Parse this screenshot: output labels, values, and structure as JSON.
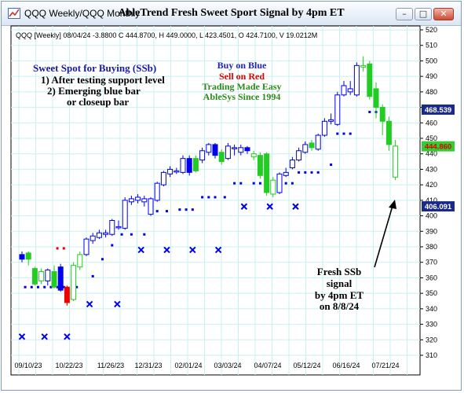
{
  "window": {
    "title": "QQQ Weekly/QQQ Monthly",
    "chart_title": "AbleTrend Fresh Sweet Sport Signal by 4pm ET",
    "controls": {
      "minimize": "–",
      "maximize": "□",
      "close": "✕"
    }
  },
  "header_info": "QQQ [Weekly] 08/04/24 -3.8800 C 444.8700, H 449.0000, L 423.4501, O 424.7100, V 19.0212M",
  "annotations": {
    "sweet_spot": [
      "Sweet Spot for Buying (SSb)",
      "1) After testing support level",
      "2) Emerging blue bar",
      "or closeup bar"
    ],
    "legend": [
      "Buy on Blue",
      "Sell on Red",
      "Trading Made Easy",
      "AbleSys Since 1994"
    ],
    "signal": [
      "Fresh SSb",
      "signal",
      "by 4pm ET",
      "on 8/8/24"
    ]
  },
  "colors": {
    "blue": "#0000ee",
    "green": "#22cc22",
    "red": "#ee0000",
    "grid": "#c8f0f0",
    "text_blue": "#1a1aa8",
    "text_red": "#e00000",
    "text_green": "#2c8a1a",
    "axis_blue_box": "#1a2a8a",
    "axis_green_box": "#33cc33"
  },
  "chart_data": {
    "type": "candlestick",
    "y_axis": {
      "min": 310,
      "max": 520,
      "ticks": [
        310,
        320,
        330,
        340,
        350,
        360,
        370,
        380,
        390,
        400,
        410,
        420,
        430,
        440,
        450,
        460,
        470,
        480,
        490,
        500,
        510,
        520
      ]
    },
    "x_labels": [
      "09/10/23",
      "10/22/23",
      "11/26/23",
      "12/31/23",
      "02/01/24",
      "03/03/24",
      "04/07/24",
      "05/12/24",
      "06/16/24",
      "07/21/24"
    ],
    "price_markers": [
      "468.539",
      "444.860",
      "406.091"
    ],
    "bars": [
      {
        "o": 375,
        "c": 372,
        "h": 377,
        "l": 370,
        "col": "blue",
        "f": true
      },
      {
        "o": 372,
        "c": 376,
        "h": 377,
        "l": 368,
        "col": "green",
        "f": true
      },
      {
        "o": 366,
        "c": 356,
        "h": 367,
        "l": 355,
        "col": "green",
        "f": true
      },
      {
        "o": 358,
        "c": 364,
        "h": 366,
        "l": 356,
        "col": "green",
        "f": false
      },
      {
        "o": 358,
        "c": 365,
        "h": 366,
        "l": 355,
        "col": "blue",
        "f": false
      },
      {
        "o": 364,
        "c": 354,
        "h": 368,
        "l": 353,
        "col": "green",
        "f": true
      },
      {
        "o": 367,
        "c": 352,
        "h": 369,
        "l": 351,
        "col": "blue",
        "f": true
      },
      {
        "o": 354,
        "c": 344,
        "h": 355,
        "l": 342,
        "col": "red",
        "f": true
      },
      {
        "o": 346,
        "c": 368,
        "h": 370,
        "l": 345,
        "col": "green",
        "f": false
      },
      {
        "o": 367,
        "c": 375,
        "h": 377,
        "l": 365,
        "col": "green",
        "f": false
      },
      {
        "o": 375,
        "c": 385,
        "h": 386,
        "l": 374,
        "col": "blue",
        "f": false
      },
      {
        "o": 384,
        "c": 387,
        "h": 389,
        "l": 382,
        "col": "blue",
        "f": false
      },
      {
        "o": 386,
        "c": 389,
        "h": 391,
        "l": 385,
        "col": "blue",
        "f": false
      },
      {
        "o": 389,
        "c": 388,
        "h": 391,
        "l": 386,
        "col": "blue",
        "f": false
      },
      {
        "o": 388,
        "c": 397,
        "h": 398,
        "l": 387,
        "col": "blue",
        "f": false
      },
      {
        "o": 393,
        "c": 393,
        "h": 397,
        "l": 391,
        "col": "blue",
        "f": false
      },
      {
        "o": 392,
        "c": 410,
        "h": 412,
        "l": 391,
        "col": "blue",
        "f": false
      },
      {
        "o": 409,
        "c": 411,
        "h": 413,
        "l": 407,
        "col": "blue",
        "f": false
      },
      {
        "o": 410,
        "c": 412,
        "h": 414,
        "l": 408,
        "col": "blue",
        "f": false
      },
      {
        "o": 411,
        "c": 409,
        "h": 413,
        "l": 406,
        "col": "blue",
        "f": false
      },
      {
        "o": 401,
        "c": 411,
        "h": 412,
        "l": 400,
        "col": "blue",
        "f": false
      },
      {
        "o": 410,
        "c": 421,
        "h": 422,
        "l": 409,
        "col": "blue",
        "f": false
      },
      {
        "o": 420,
        "c": 428,
        "h": 429,
        "l": 419,
        "col": "blue",
        "f": false
      },
      {
        "o": 427,
        "c": 430,
        "h": 432,
        "l": 425,
        "col": "blue",
        "f": false
      },
      {
        "o": 429,
        "c": 429,
        "h": 431,
        "l": 427,
        "col": "blue",
        "f": false
      },
      {
        "o": 428,
        "c": 437,
        "h": 439,
        "l": 427,
        "col": "blue",
        "f": false
      },
      {
        "o": 437,
        "c": 428,
        "h": 439,
        "l": 426,
        "col": "blue",
        "f": true
      },
      {
        "o": 429,
        "c": 437,
        "h": 439,
        "l": 428,
        "col": "green",
        "f": true
      },
      {
        "o": 436,
        "c": 442,
        "h": 444,
        "l": 434,
        "col": "blue",
        "f": false
      },
      {
        "o": 441,
        "c": 446,
        "h": 447,
        "l": 439,
        "col": "blue",
        "f": false
      },
      {
        "o": 446,
        "c": 439,
        "h": 447,
        "l": 437,
        "col": "blue",
        "f": true
      },
      {
        "o": 441,
        "c": 435,
        "h": 443,
        "l": 433,
        "col": "green",
        "f": true
      },
      {
        "o": 437,
        "c": 445,
        "h": 447,
        "l": 436,
        "col": "blue",
        "f": false
      },
      {
        "o": 444,
        "c": 444,
        "h": 446,
        "l": 439,
        "col": "blue",
        "f": false
      },
      {
        "o": 444,
        "c": 441,
        "h": 446,
        "l": 439,
        "col": "blue",
        "f": false
      },
      {
        "o": 444,
        "c": 442,
        "h": 445,
        "l": 440,
        "col": "blue",
        "f": true
      },
      {
        "o": 440,
        "c": 438,
        "h": 442,
        "l": 436,
        "col": "green",
        "f": false
      },
      {
        "o": 439,
        "c": 426,
        "h": 441,
        "l": 424,
        "col": "green",
        "f": true
      },
      {
        "o": 440,
        "c": 415,
        "h": 441,
        "l": 413,
        "col": "green",
        "f": true
      },
      {
        "o": 423,
        "c": 414,
        "h": 425,
        "l": 412,
        "col": "green",
        "f": false
      },
      {
        "o": 415,
        "c": 427,
        "h": 428,
        "l": 414,
        "col": "blue",
        "f": false
      },
      {
        "o": 426,
        "c": 428,
        "h": 431,
        "l": 425,
        "col": "blue",
        "f": false
      },
      {
        "o": 431,
        "c": 436,
        "h": 438,
        "l": 430,
        "col": "blue",
        "f": false
      },
      {
        "o": 436,
        "c": 442,
        "h": 444,
        "l": 435,
        "col": "blue",
        "f": false
      },
      {
        "o": 441,
        "c": 446,
        "h": 448,
        "l": 440,
        "col": "blue",
        "f": false
      },
      {
        "o": 447,
        "c": 444,
        "h": 449,
        "l": 442,
        "col": "green",
        "f": true
      },
      {
        "o": 443,
        "c": 452,
        "h": 453,
        "l": 442,
        "col": "blue",
        "f": false
      },
      {
        "o": 452,
        "c": 461,
        "h": 463,
        "l": 451,
        "col": "blue",
        "f": false
      },
      {
        "o": 461,
        "c": 462,
        "h": 466,
        "l": 459,
        "col": "blue",
        "f": false
      },
      {
        "o": 459,
        "c": 478,
        "h": 480,
        "l": 458,
        "col": "blue",
        "f": false
      },
      {
        "o": 478,
        "c": 484,
        "h": 487,
        "l": 477,
        "col": "blue",
        "f": false
      },
      {
        "o": 482,
        "c": 480,
        "h": 487,
        "l": 478,
        "col": "blue",
        "f": false
      },
      {
        "o": 478,
        "c": 497,
        "h": 499,
        "l": 477,
        "col": "blue",
        "f": false
      },
      {
        "o": 497,
        "c": 496,
        "h": 503,
        "l": 493,
        "col": "green",
        "f": false
      },
      {
        "o": 498,
        "c": 477,
        "h": 500,
        "l": 475,
        "col": "green",
        "f": true
      },
      {
        "o": 482,
        "c": 470,
        "h": 486,
        "l": 463,
        "col": "green",
        "f": true
      },
      {
        "o": 470,
        "c": 461,
        "h": 472,
        "l": 452,
        "col": "green",
        "f": true
      },
      {
        "o": 461,
        "c": 446,
        "h": 464,
        "l": 442,
        "col": "green",
        "f": true
      },
      {
        "o": 425,
        "c": 445,
        "h": 449,
        "l": 423,
        "col": "green",
        "f": false
      }
    ],
    "dots": [
      {
        "x": 0.5,
        "y": 354,
        "c": "blue"
      },
      {
        "x": 1.5,
        "y": 354,
        "c": "blue"
      },
      {
        "x": 2.5,
        "y": 354,
        "c": "blue"
      },
      {
        "x": 3.5,
        "y": 354,
        "c": "blue"
      },
      {
        "x": 4.5,
        "y": 354,
        "c": "blue"
      },
      {
        "x": 5.5,
        "y": 354,
        "c": "blue"
      },
      {
        "x": 6.5,
        "y": 354,
        "c": "blue"
      },
      {
        "x": 8.5,
        "y": 354,
        "c": "blue"
      },
      {
        "x": 11,
        "y": 361,
        "c": "blue"
      },
      {
        "x": 12.5,
        "y": 372,
        "c": "blue"
      },
      {
        "x": 14,
        "y": 381,
        "c": "blue"
      },
      {
        "x": 15.5,
        "y": 388,
        "c": "blue"
      },
      {
        "x": 17,
        "y": 388,
        "c": "blue"
      },
      {
        "x": 19,
        "y": 388,
        "c": "blue"
      },
      {
        "x": 21,
        "y": 403,
        "c": "blue"
      },
      {
        "x": 22.5,
        "y": 403,
        "c": "blue"
      },
      {
        "x": 24.5,
        "y": 404,
        "c": "blue"
      },
      {
        "x": 25.5,
        "y": 404,
        "c": "blue"
      },
      {
        "x": 26.5,
        "y": 404,
        "c": "blue"
      },
      {
        "x": 28,
        "y": 412,
        "c": "blue"
      },
      {
        "x": 29,
        "y": 412,
        "c": "blue"
      },
      {
        "x": 30,
        "y": 412,
        "c": "blue"
      },
      {
        "x": 31.5,
        "y": 412,
        "c": "blue"
      },
      {
        "x": 33,
        "y": 421,
        "c": "blue"
      },
      {
        "x": 34,
        "y": 421,
        "c": "blue"
      },
      {
        "x": 36,
        "y": 421,
        "c": "blue"
      },
      {
        "x": 37,
        "y": 421,
        "c": "blue"
      },
      {
        "x": 39,
        "y": 421,
        "c": "blue"
      },
      {
        "x": 40,
        "y": 421,
        "c": "blue"
      },
      {
        "x": 41,
        "y": 421,
        "c": "blue"
      },
      {
        "x": 42,
        "y": 421,
        "c": "blue"
      },
      {
        "x": 43,
        "y": 428,
        "c": "blue"
      },
      {
        "x": 44,
        "y": 428,
        "c": "blue"
      },
      {
        "x": 45,
        "y": 428,
        "c": "blue"
      },
      {
        "x": 46,
        "y": 428,
        "c": "blue"
      },
      {
        "x": 48,
        "y": 433,
        "c": "blue"
      },
      {
        "x": 49,
        "y": 453,
        "c": "blue"
      },
      {
        "x": 50,
        "y": 453,
        "c": "blue"
      },
      {
        "x": 51,
        "y": 453,
        "c": "blue"
      },
      {
        "x": 54,
        "y": 467,
        "c": "blue"
      },
      {
        "x": 55,
        "y": 467,
        "c": "blue"
      },
      {
        "x": 56,
        "y": 467,
        "c": "blue"
      },
      {
        "x": 5.5,
        "y": 379,
        "c": "red"
      },
      {
        "x": 6.5,
        "y": 379,
        "c": "red"
      }
    ],
    "crosses": [
      {
        "x": 0,
        "y": 322
      },
      {
        "x": 3.5,
        "y": 322
      },
      {
        "x": 7,
        "y": 322
      },
      {
        "x": 10.5,
        "y": 343
      },
      {
        "x": 14.8,
        "y": 343
      },
      {
        "x": 18.5,
        "y": 378
      },
      {
        "x": 22.5,
        "y": 378
      },
      {
        "x": 26.5,
        "y": 378
      },
      {
        "x": 30.5,
        "y": 378
      },
      {
        "x": 34.5,
        "y": 406
      },
      {
        "x": 38.5,
        "y": 406
      },
      {
        "x": 42.5,
        "y": 406
      }
    ]
  }
}
